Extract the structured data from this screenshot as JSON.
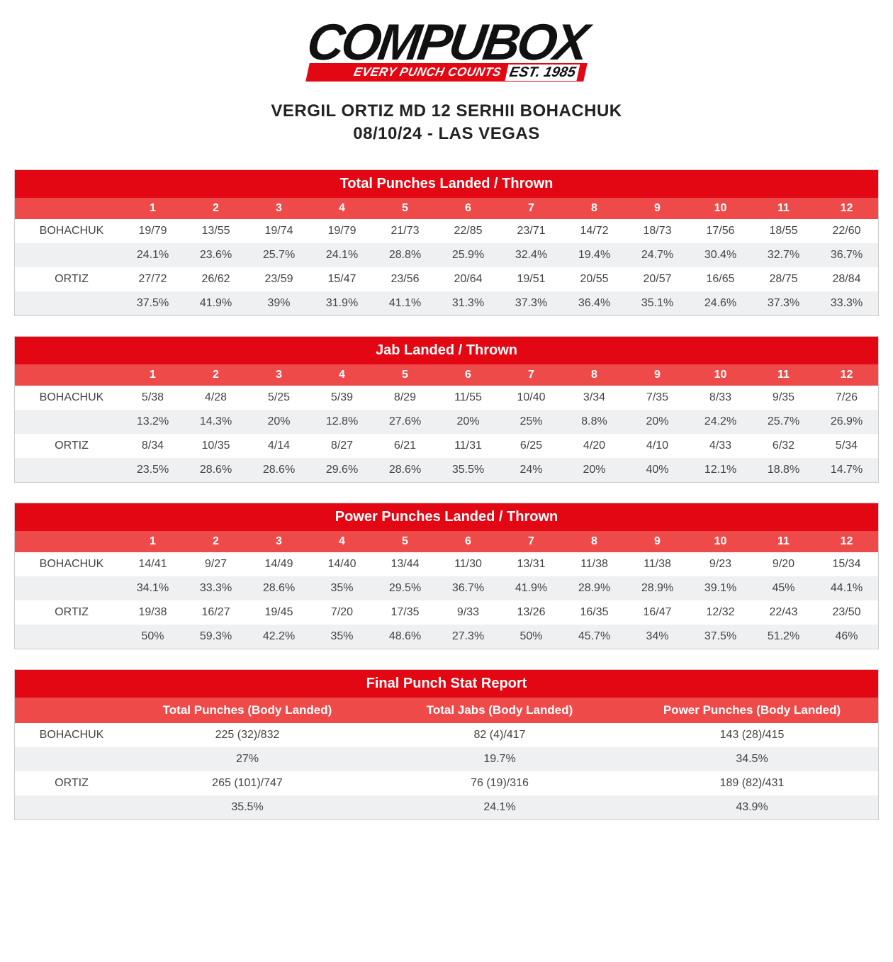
{
  "logo": {
    "main": "COMPUBOX",
    "tagline": "EVERY PUNCH COUNTS",
    "est": "EST. 1985"
  },
  "header": {
    "line1": "VERGIL ORTIZ MD 12 SERHII BOHACHUK",
    "line2": "08/10/24 - LAS VEGAS"
  },
  "rounds": [
    "1",
    "2",
    "3",
    "4",
    "5",
    "6",
    "7",
    "8",
    "9",
    "10",
    "11",
    "12"
  ],
  "fighters": {
    "a": "BOHACHUK",
    "b": "ORTIZ"
  },
  "tables": {
    "total": {
      "title": "Total Punches Landed / Thrown",
      "a_lt": [
        "19/79",
        "13/55",
        "19/74",
        "19/79",
        "21/73",
        "22/85",
        "23/71",
        "14/72",
        "18/73",
        "17/56",
        "18/55",
        "22/60"
      ],
      "a_pct": [
        "24.1%",
        "23.6%",
        "25.7%",
        "24.1%",
        "28.8%",
        "25.9%",
        "32.4%",
        "19.4%",
        "24.7%",
        "30.4%",
        "32.7%",
        "36.7%"
      ],
      "b_lt": [
        "27/72",
        "26/62",
        "23/59",
        "15/47",
        "23/56",
        "20/64",
        "19/51",
        "20/55",
        "20/57",
        "16/65",
        "28/75",
        "28/84"
      ],
      "b_pct": [
        "37.5%",
        "41.9%",
        "39%",
        "31.9%",
        "41.1%",
        "31.3%",
        "37.3%",
        "36.4%",
        "35.1%",
        "24.6%",
        "37.3%",
        "33.3%"
      ]
    },
    "jab": {
      "title": "Jab Landed / Thrown",
      "a_lt": [
        "5/38",
        "4/28",
        "5/25",
        "5/39",
        "8/29",
        "11/55",
        "10/40",
        "3/34",
        "7/35",
        "8/33",
        "9/35",
        "7/26"
      ],
      "a_pct": [
        "13.2%",
        "14.3%",
        "20%",
        "12.8%",
        "27.6%",
        "20%",
        "25%",
        "8.8%",
        "20%",
        "24.2%",
        "25.7%",
        "26.9%"
      ],
      "b_lt": [
        "8/34",
        "10/35",
        "4/14",
        "8/27",
        "6/21",
        "11/31",
        "6/25",
        "4/20",
        "4/10",
        "4/33",
        "6/32",
        "5/34"
      ],
      "b_pct": [
        "23.5%",
        "28.6%",
        "28.6%",
        "29.6%",
        "28.6%",
        "35.5%",
        "24%",
        "20%",
        "40%",
        "12.1%",
        "18.8%",
        "14.7%"
      ]
    },
    "power": {
      "title": "Power Punches Landed / Thrown",
      "a_lt": [
        "14/41",
        "9/27",
        "14/49",
        "14/40",
        "13/44",
        "11/30",
        "13/31",
        "11/38",
        "11/38",
        "9/23",
        "9/20",
        "15/34"
      ],
      "a_pct": [
        "34.1%",
        "33.3%",
        "28.6%",
        "35%",
        "29.5%",
        "36.7%",
        "41.9%",
        "28.9%",
        "28.9%",
        "39.1%",
        "45%",
        "44.1%"
      ],
      "b_lt": [
        "19/38",
        "16/27",
        "19/45",
        "7/20",
        "17/35",
        "9/33",
        "13/26",
        "16/35",
        "16/47",
        "12/32",
        "22/43",
        "23/50"
      ],
      "b_pct": [
        "50%",
        "59.3%",
        "42.2%",
        "35%",
        "48.6%",
        "27.3%",
        "50%",
        "45.7%",
        "34%",
        "37.5%",
        "51.2%",
        "46%"
      ]
    }
  },
  "final": {
    "title": "Final Punch Stat Report",
    "cols": [
      "Total Punches (Body Landed)",
      "Total Jabs (Body Landed)",
      "Power Punches (Body Landed)"
    ],
    "a_lt": [
      "225 (32)/832",
      "82 (4)/417",
      "143 (28)/415"
    ],
    "a_pct": [
      "27%",
      "19.7%",
      "34.5%"
    ],
    "b_lt": [
      "265 (101)/747",
      "76 (19)/316",
      "189 (82)/431"
    ],
    "b_pct": [
      "35.5%",
      "24.1%",
      "43.9%"
    ]
  },
  "colors": {
    "header_red": "#e30613",
    "sub_red": "#ef4a4a",
    "row_alt": "#eef0f2"
  }
}
